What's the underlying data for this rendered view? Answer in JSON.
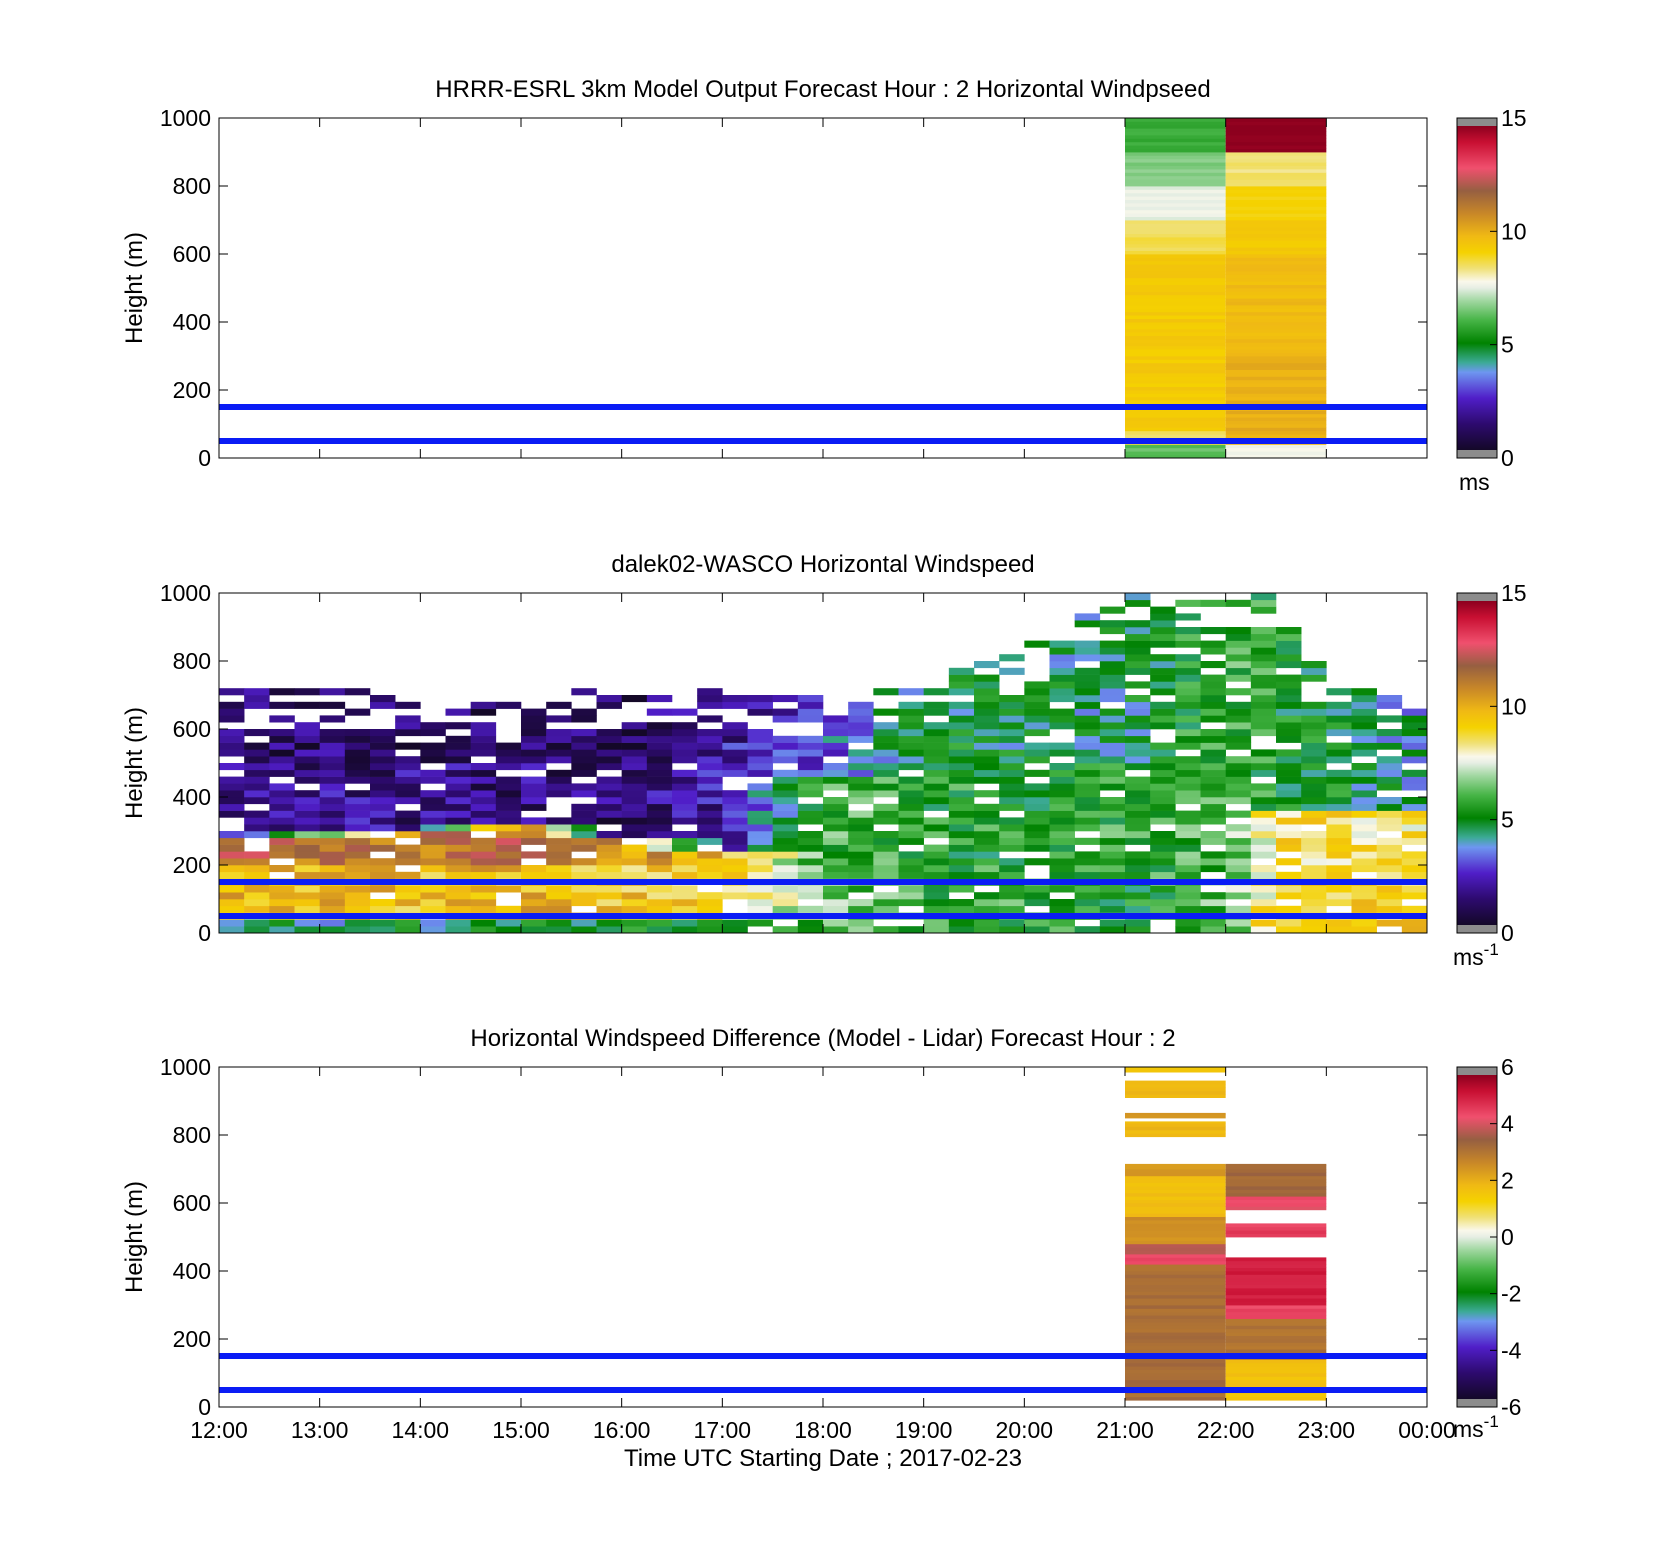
{
  "figure": {
    "xlabel": "Time UTC  Starting Date ; 2017-02-23",
    "x_ticks": [
      "12:00",
      "13:00",
      "14:00",
      "15:00",
      "16:00",
      "17:00",
      "18:00",
      "19:00",
      "20:00",
      "21:00",
      "22:00",
      "23:00",
      "00:00"
    ]
  },
  "colors": {
    "reference_lines": "#0a1cf5",
    "background": "#ffffff"
  },
  "chart_data": [
    {
      "type": "heatmap",
      "title": "HRRR-ESRL 3km Model Output   Forecast Hour : 2 Horizontal Windpseed",
      "ylabel": "Height (m)",
      "y_ticks": [
        "0",
        "200",
        "400",
        "600",
        "800",
        "1000"
      ],
      "ylim": [
        0,
        1000
      ],
      "xlim_hours": [
        12,
        24
      ],
      "colorbar": {
        "min": 0,
        "max": 15,
        "ticks": [
          "0",
          "5",
          "10",
          "15"
        ],
        "unit": "ms",
        "unit_sup": ""
      },
      "reference_lines_m": [
        50,
        150
      ],
      "columns": [
        {
          "start_hour": 21,
          "end_hour": 22,
          "levels": [
            {
              "h0": 0,
              "h1": 40,
              "v": 6.3
            },
            {
              "h0": 40,
              "h1": 80,
              "v": 8.6
            },
            {
              "h0": 80,
              "h1": 600,
              "v": 9.4
            },
            {
              "h0": 600,
              "h1": 700,
              "v": 8.6
            },
            {
              "h0": 700,
              "h1": 800,
              "v": 7.6
            },
            {
              "h0": 800,
              "h1": 900,
              "v": 6.6
            },
            {
              "h0": 900,
              "h1": 1000,
              "v": 5.8
            }
          ]
        },
        {
          "start_hour": 22,
          "end_hour": 23,
          "levels": [
            {
              "h0": 0,
              "h1": 40,
              "v": 7.8
            },
            {
              "h0": 40,
              "h1": 300,
              "v": 10.1
            },
            {
              "h0": 300,
              "h1": 600,
              "v": 9.8
            },
            {
              "h0": 600,
              "h1": 700,
              "v": 9.4
            },
            {
              "h0": 700,
              "h1": 800,
              "v": 9.0
            },
            {
              "h0": 800,
              "h1": 900,
              "v": 8.4
            },
            {
              "h0": 900,
              "h1": 1000,
              "v": 15
            }
          ]
        }
      ]
    },
    {
      "type": "heatmap",
      "title": "dalek02-WASCO  Horizontal Windspeed",
      "ylabel": "Height (m)",
      "y_ticks": [
        "0",
        "200",
        "400",
        "600",
        "800",
        "1000"
      ],
      "ylim": [
        0,
        1000
      ],
      "xlim_hours": [
        12,
        24
      ],
      "colorbar": {
        "min": 0,
        "max": 15,
        "ticks": [
          "0",
          "5",
          "10",
          "15"
        ],
        "unit": "ms",
        "unit_sup": "-1"
      },
      "reference_lines_m": [
        50,
        150
      ],
      "time_step_hours": 0.25,
      "height_step_m": 20,
      "coverage": [
        [
          12.0,
          700
        ],
        [
          12.5,
          700
        ],
        [
          13.0,
          700
        ],
        [
          13.5,
          700
        ],
        [
          14.0,
          700
        ],
        [
          14.5,
          680
        ],
        [
          15.0,
          660
        ],
        [
          15.5,
          700
        ],
        [
          16.0,
          700
        ],
        [
          16.5,
          700
        ],
        [
          17.0,
          700
        ],
        [
          17.5,
          700
        ],
        [
          18.0,
          690
        ],
        [
          18.5,
          700
        ],
        [
          19.0,
          700
        ],
        [
          19.5,
          780
        ],
        [
          20.0,
          820
        ],
        [
          20.5,
          900
        ],
        [
          21.0,
          1000
        ],
        [
          21.5,
          1000
        ],
        [
          22.0,
          1000
        ],
        [
          22.5,
          1000
        ],
        [
          23.0,
          720
        ],
        [
          23.5,
          720
        ],
        [
          23.85,
          700
        ]
      ],
      "profiles": [
        {
          "hour": 12.0,
          "bands": [
            [
              0,
              30,
              4.2
            ],
            [
              30,
              200,
              9.8
            ],
            [
              200,
              270,
              11.8
            ],
            [
              270,
              480,
              1.6
            ],
            [
              480,
              700,
              1.2
            ]
          ]
        },
        {
          "hour": 14.0,
          "bands": [
            [
              0,
              30,
              4.5
            ],
            [
              30,
              200,
              9.6
            ],
            [
              200,
              300,
              11.5
            ],
            [
              300,
              500,
              1.5
            ],
            [
              500,
              700,
              1.0
            ]
          ]
        },
        {
          "hour": 15.0,
          "bands": [
            [
              0,
              30,
              4.8
            ],
            [
              30,
              200,
              9.9
            ],
            [
              200,
              310,
              12.0
            ],
            [
              310,
              500,
              1.4
            ],
            [
              500,
              700,
              1.2
            ]
          ]
        },
        {
          "hour": 16.0,
          "bands": [
            [
              0,
              30,
              5.0
            ],
            [
              30,
              200,
              9.4
            ],
            [
              200,
              280,
              10.6
            ],
            [
              280,
              500,
              1.2
            ],
            [
              500,
              700,
              1.0
            ]
          ]
        },
        {
          "hour": 17.0,
          "bands": [
            [
              0,
              30,
              5.6
            ],
            [
              30,
              200,
              9.0
            ],
            [
              200,
              240,
              9.8
            ],
            [
              240,
              500,
              2.0
            ],
            [
              500,
              700,
              1.8
            ]
          ]
        },
        {
          "hour": 18.0,
          "bands": [
            [
              0,
              30,
              5.8
            ],
            [
              30,
              200,
              6.6
            ],
            [
              200,
              450,
              6.0
            ],
            [
              450,
              700,
              3.0
            ]
          ]
        },
        {
          "hour": 19.0,
          "bands": [
            [
              0,
              30,
              5.6
            ],
            [
              30,
              200,
              5.6
            ],
            [
              200,
              450,
              5.4
            ],
            [
              450,
              700,
              4.8
            ]
          ]
        },
        {
          "hour": 20.0,
          "bands": [
            [
              0,
              30,
              5.4
            ],
            [
              30,
              200,
              5.6
            ],
            [
              200,
              500,
              5.2
            ],
            [
              500,
              820,
              4.6
            ]
          ]
        },
        {
          "hour": 21.0,
          "bands": [
            [
              0,
              30,
              5.4
            ],
            [
              30,
              200,
              5.0
            ],
            [
              200,
              500,
              5.6
            ],
            [
              500,
              1000,
              4.4
            ]
          ]
        },
        {
          "hour": 22.0,
          "bands": [
            [
              0,
              30,
              6.2
            ],
            [
              30,
              200,
              6.2
            ],
            [
              200,
              500,
              6.0
            ],
            [
              500,
              1000,
              5.8
            ]
          ]
        },
        {
          "hour": 22.5,
          "bands": [
            [
              0,
              30,
              9.2
            ],
            [
              30,
              200,
              9.0
            ],
            [
              200,
              360,
              8.6
            ],
            [
              360,
              720,
              5.2
            ]
          ]
        },
        {
          "hour": 23.0,
          "bands": [
            [
              0,
              30,
              9.4
            ],
            [
              30,
              200,
              9.2
            ],
            [
              200,
              360,
              8.8
            ],
            [
              360,
              720,
              5.0
            ]
          ]
        },
        {
          "hour": 23.85,
          "bands": [
            [
              0,
              30,
              9.0
            ],
            [
              30,
              200,
              8.8
            ],
            [
              200,
              360,
              8.4
            ],
            [
              360,
              700,
              4.0
            ]
          ]
        }
      ]
    },
    {
      "type": "heatmap",
      "title": "Horizontal Windspeed Difference (Model - Lidar) Forecast Hour : 2",
      "ylabel": "Height (m)",
      "y_ticks": [
        "0",
        "200",
        "400",
        "600",
        "800",
        "1000"
      ],
      "ylim": [
        0,
        1000
      ],
      "xlim_hours": [
        12,
        24
      ],
      "colorbar": {
        "min": -6,
        "max": 6,
        "ticks": [
          "-6",
          "-4",
          "-2",
          "0",
          "2",
          "4",
          "6"
        ],
        "unit": "ms",
        "unit_sup": "-1"
      },
      "reference_lines_m": [
        50,
        150
      ],
      "columns": [
        {
          "start_hour": 21,
          "end_hour": 22,
          "levels": [
            {
              "h0": 20,
              "h1": 420,
              "v": 3.3
            },
            {
              "h0": 420,
              "h1": 450,
              "v": 4.5
            },
            {
              "h0": 450,
              "h1": 480,
              "v": 4.0
            },
            {
              "h0": 480,
              "h1": 560,
              "v": 2.6
            },
            {
              "h0": 560,
              "h1": 680,
              "v": 1.8
            },
            {
              "h0": 680,
              "h1": 715,
              "v": 2.4
            },
            {
              "h0": 795,
              "h1": 840,
              "v": 1.9
            },
            {
              "h0": 850,
              "h1": 865,
              "v": 2.4
            },
            {
              "h0": 910,
              "h1": 960,
              "v": 1.9
            },
            {
              "h0": 985,
              "h1": 1000,
              "v": 1.6
            }
          ]
        },
        {
          "start_hour": 22,
          "end_hour": 23,
          "levels": [
            {
              "h0": 20,
              "h1": 140,
              "v": 1.7
            },
            {
              "h0": 140,
              "h1": 260,
              "v": 3.2
            },
            {
              "h0": 260,
              "h1": 300,
              "v": 4.6
            },
            {
              "h0": 300,
              "h1": 440,
              "v": 5.2
            },
            {
              "h0": 500,
              "h1": 540,
              "v": 4.7
            },
            {
              "h0": 580,
              "h1": 620,
              "v": 4.4
            },
            {
              "h0": 620,
              "h1": 715,
              "v": 3.4
            }
          ]
        }
      ]
    }
  ]
}
